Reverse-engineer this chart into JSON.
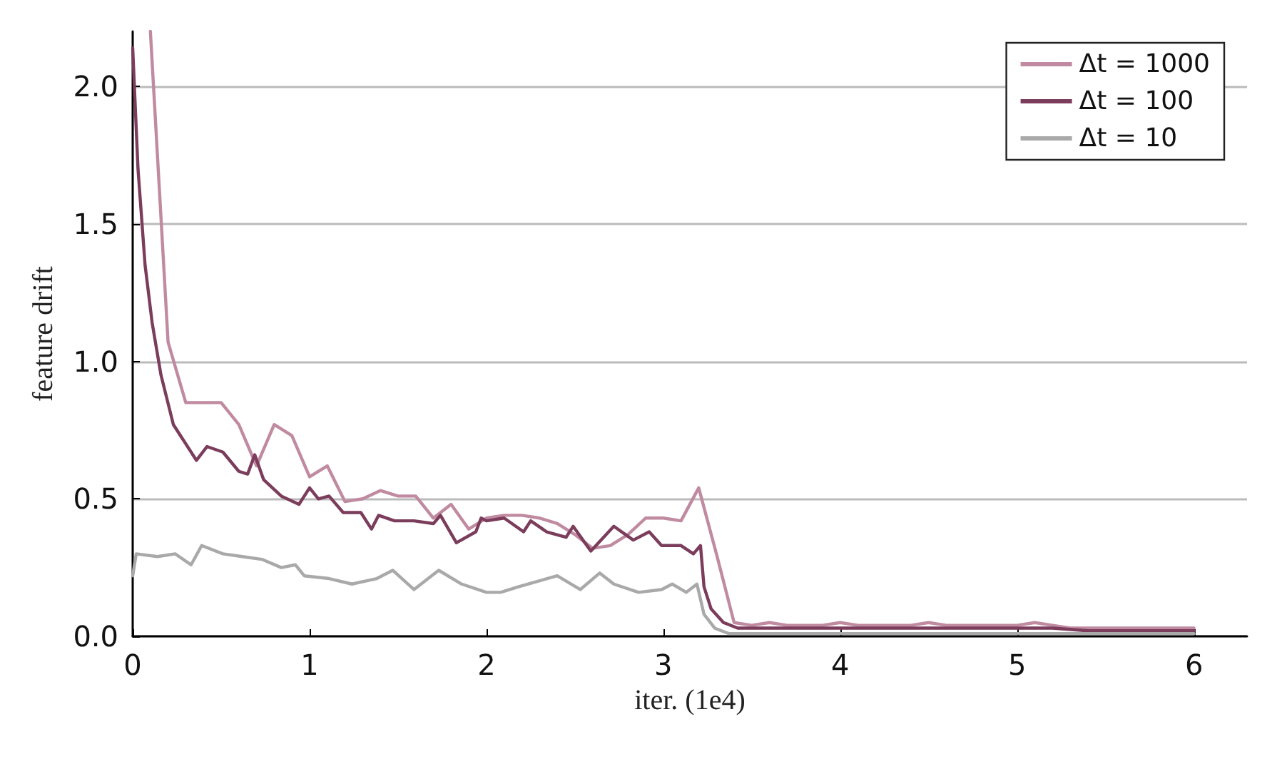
{
  "chart_data": {
    "type": "line",
    "xlabel": "iter. (1e4)",
    "ylabel": "feature drift",
    "xlim": [
      0,
      6.3
    ],
    "ylim": [
      0,
      2.2
    ],
    "xticks": [
      0,
      1,
      2,
      3,
      4,
      5,
      6
    ],
    "yticks": [
      {
        "value": 0,
        "label": "0.0"
      },
      {
        "value": 0.5,
        "label": "0.5"
      },
      {
        "value": 1,
        "label": "1.0"
      },
      {
        "value": 1.5,
        "label": "1.5"
      },
      {
        "value": 2,
        "label": "2.0"
      }
    ],
    "grid": "y",
    "legend": "top right",
    "marker": "none",
    "line_style": "solid",
    "series": [
      {
        "name": "Δt = 1000",
        "color": "#c08aa0",
        "x": [
          0.1,
          0.2,
          0.3,
          0.4,
          0.5,
          0.6,
          0.7,
          0.8,
          0.9,
          1.0,
          1.1,
          1.2,
          1.3,
          1.4,
          1.5,
          1.6,
          1.7,
          1.8,
          1.9,
          2.0,
          2.1,
          2.2,
          2.3,
          2.4,
          2.5,
          2.6,
          2.7,
          2.8,
          2.9,
          3.0,
          3.1,
          3.2,
          3.3,
          3.4,
          3.5,
          3.6,
          3.7,
          3.8,
          3.9,
          4.0,
          4.1,
          4.2,
          4.3,
          4.4,
          4.5,
          4.6,
          4.7,
          4.8,
          4.9,
          5.0,
          5.1,
          5.2,
          5.3,
          5.4,
          5.5,
          5.6,
          5.7,
          5.8,
          5.9,
          6.0
        ],
        "values": [
          2.2,
          1.07,
          0.85,
          0.85,
          0.85,
          0.77,
          0.62,
          0.77,
          0.73,
          0.58,
          0.62,
          0.49,
          0.5,
          0.53,
          0.51,
          0.51,
          0.43,
          0.48,
          0.39,
          0.43,
          0.44,
          0.44,
          0.43,
          0.41,
          0.37,
          0.32,
          0.33,
          0.37,
          0.43,
          0.43,
          0.42,
          0.54,
          0.3,
          0.05,
          0.04,
          0.05,
          0.04,
          0.04,
          0.04,
          0.05,
          0.04,
          0.04,
          0.04,
          0.04,
          0.05,
          0.04,
          0.04,
          0.04,
          0.04,
          0.04,
          0.05,
          0.04,
          0.03,
          0.03,
          0.03,
          0.03,
          0.03,
          0.03,
          0.03,
          0.03
        ]
      },
      {
        "name": "Δt = 100",
        "color": "#7b3d5b",
        "x": [
          0,
          0.03,
          0.07,
          0.11,
          0.16,
          0.23,
          0.28,
          0.36,
          0.42,
          0.51,
          0.6,
          0.65,
          0.69,
          0.74,
          0.84,
          0.94,
          1.0,
          1.05,
          1.11,
          1.19,
          1.29,
          1.35,
          1.39,
          1.48,
          1.59,
          1.7,
          1.74,
          1.83,
          1.94,
          1.97,
          2.0,
          2.1,
          2.21,
          2.25,
          2.34,
          2.45,
          2.49,
          2.59,
          2.72,
          2.83,
          2.92,
          2.99,
          3.1,
          3.17,
          3.21,
          3.23,
          3.27,
          3.34,
          3.42,
          3.6,
          3.8,
          4.0,
          4.2,
          4.4,
          4.6,
          4.8,
          5.0,
          5.2,
          5.4,
          5.6,
          5.8,
          6.0
        ],
        "values": [
          2.14,
          1.7,
          1.35,
          1.14,
          0.95,
          0.77,
          0.72,
          0.64,
          0.69,
          0.67,
          0.6,
          0.59,
          0.66,
          0.57,
          0.51,
          0.48,
          0.54,
          0.5,
          0.51,
          0.45,
          0.45,
          0.39,
          0.44,
          0.42,
          0.42,
          0.41,
          0.44,
          0.34,
          0.38,
          0.43,
          0.42,
          0.43,
          0.38,
          0.42,
          0.38,
          0.36,
          0.4,
          0.31,
          0.4,
          0.35,
          0.38,
          0.33,
          0.33,
          0.3,
          0.33,
          0.18,
          0.1,
          0.05,
          0.03,
          0.03,
          0.03,
          0.03,
          0.03,
          0.03,
          0.03,
          0.03,
          0.03,
          0.03,
          0.02,
          0.02,
          0.02,
          0.02
        ]
      },
      {
        "name": "Δt = 10",
        "color": "#a9a9a9",
        "x": [
          0,
          0.02,
          0.14,
          0.24,
          0.33,
          0.39,
          0.51,
          0.62,
          0.73,
          0.84,
          0.92,
          0.97,
          1.11,
          1.24,
          1.38,
          1.47,
          1.59,
          1.73,
          1.86,
          2.0,
          2.08,
          2.18,
          2.4,
          2.53,
          2.64,
          2.72,
          2.86,
          2.99,
          3.05,
          3.13,
          3.19,
          3.23,
          3.29,
          3.37,
          3.6,
          4.0,
          4.5,
          5.0,
          5.5,
          6.0
        ],
        "values": [
          0.22,
          0.3,
          0.29,
          0.3,
          0.26,
          0.33,
          0.3,
          0.29,
          0.28,
          0.25,
          0.26,
          0.22,
          0.21,
          0.19,
          0.21,
          0.24,
          0.17,
          0.24,
          0.19,
          0.16,
          0.16,
          0.18,
          0.22,
          0.17,
          0.23,
          0.19,
          0.16,
          0.17,
          0.19,
          0.16,
          0.19,
          0.08,
          0.03,
          0.01,
          0.01,
          0.01,
          0.01,
          0.01,
          0.01,
          0.01
        ]
      }
    ]
  }
}
